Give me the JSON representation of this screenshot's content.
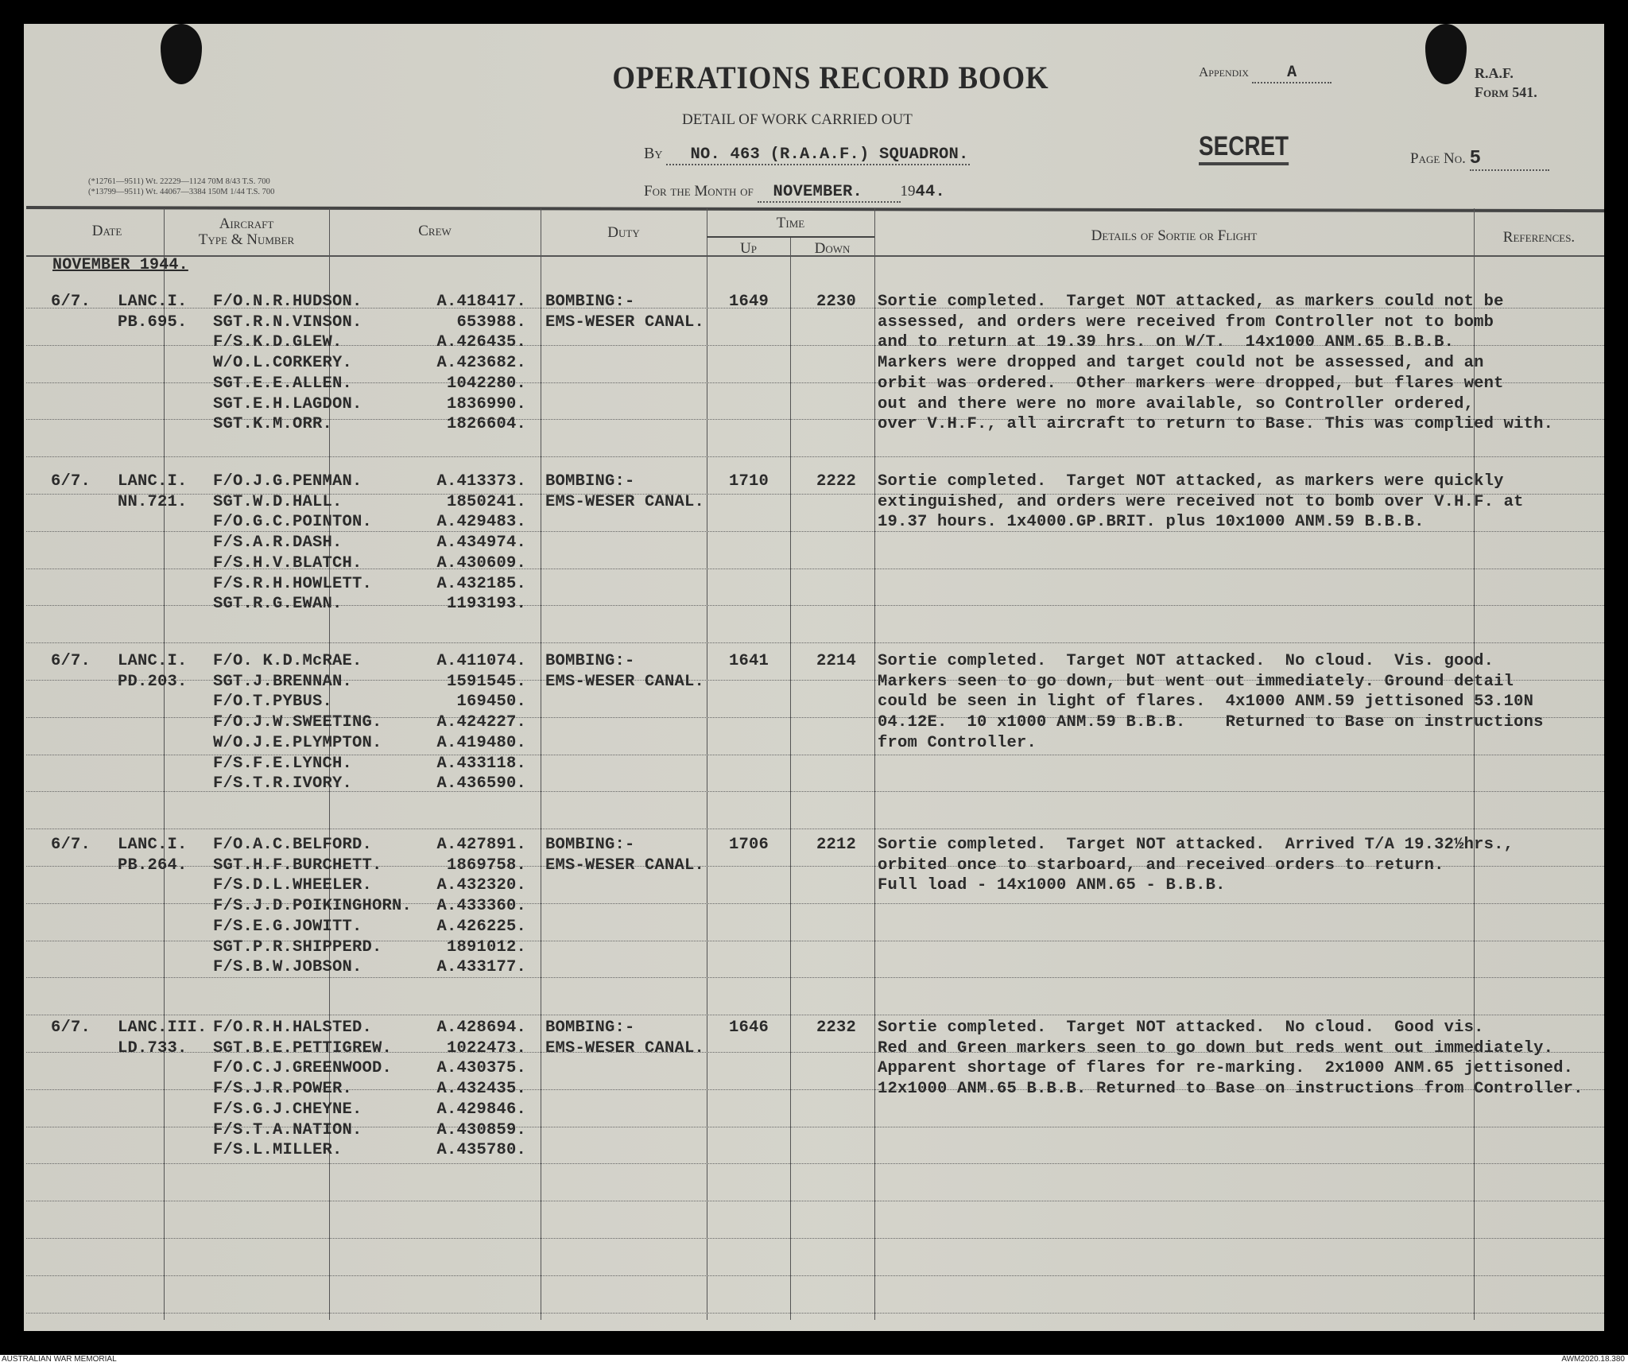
{
  "form": {
    "title": "OPERATIONS RECORD BOOK",
    "appendix_label": "Appendix",
    "appendix_value": "A",
    "raf_label": "R.A.F.",
    "form_number": "Form 541.",
    "subtitle": "DETAIL OF WORK CARRIED OUT",
    "by_label": "By",
    "squadron": "NO. 463 (R.A.A.F.) SQUADRON.",
    "classification": "SECRET",
    "page_label": "Page No.",
    "page_number": "5",
    "month_label": "For the Month of",
    "month_value": "NOVEMBER.",
    "year_prefix": "19",
    "year_suffix": "44.",
    "print_ref_1": "(*12761—9511)  Wt. 22229—1124  70M  8/43  T.S.  700",
    "print_ref_2": "(*13799—9511)  Wt. 44067—3384  150M  1/44  T.S.  700"
  },
  "columns": {
    "date": "Date",
    "aircraft_1": "Aircraft",
    "aircraft_2": "Type & Number",
    "crew": "Crew",
    "duty": "Duty",
    "time": "Time",
    "up": "Up",
    "down": "Down",
    "details": "Details of Sortie or Flight",
    "references": "References."
  },
  "section_heading": "NOVEMBER 1944.",
  "entries": [
    {
      "date": "6/7.",
      "aircraft_type": "LANC.I.",
      "aircraft_number": "PB.695.",
      "crew": [
        {
          "name": "F/O.N.R.HUDSON.",
          "number": "A.418417."
        },
        {
          "name": "SGT.R.N.VINSON.",
          "number": "653988."
        },
        {
          "name": "F/S.K.D.GLEW.",
          "number": "A.426435."
        },
        {
          "name": "W/O.L.CORKERY.",
          "number": "A.423682."
        },
        {
          "name": "SGT.E.E.ALLEN.",
          "number": "1042280."
        },
        {
          "name": "SGT.E.H.LAGDON.",
          "number": "1836990."
        },
        {
          "name": "SGT.K.M.ORR.",
          "number": "1826604."
        }
      ],
      "duty": [
        "BOMBING:-",
        "EMS-WESER CANAL."
      ],
      "up": "1649",
      "down": "2230",
      "details": [
        "Sortie completed.  Target NOT attacked, as markers could not be",
        "assessed, and orders were received from Controller not to bomb",
        "and to return at 19.39 hrs. on W/T.  14x1000 ANM.65 B.B.B.",
        "Markers were dropped and target could not be assessed, and an",
        "orbit was ordered.  Other markers were dropped, but flares went",
        "out and there were no more available, so Controller ordered,",
        "over V.H.F., all aircraft to return to Base. This was complied with."
      ]
    },
    {
      "date": "6/7.",
      "aircraft_type": "LANC.I.",
      "aircraft_number": "NN.721.",
      "crew": [
        {
          "name": "F/O.J.G.PENMAN.",
          "number": "A.413373."
        },
        {
          "name": "SGT.W.D.HALL.",
          "number": "1850241."
        },
        {
          "name": "F/O.G.C.POINTON.",
          "number": "A.429483."
        },
        {
          "name": "F/S.A.R.DASH.",
          "number": "A.434974."
        },
        {
          "name": "F/S.H.V.BLATCH.",
          "number": "A.430609."
        },
        {
          "name": "F/S.R.H.HOWLETT.",
          "number": "A.432185."
        },
        {
          "name": "SGT.R.G.EWAN.",
          "number": "1193193."
        }
      ],
      "duty": [
        "BOMBING:-",
        "EMS-WESER CANAL."
      ],
      "up": "1710",
      "down": "2222",
      "details": [
        "Sortie completed.  Target NOT attacked, as markers were quickly",
        "extinguished, and orders were received not to bomb over V.H.F. at",
        "19.37 hours. 1x4000.GP.BRIT. plus 10x1000 ANM.59 B.B.B."
      ]
    },
    {
      "date": "6/7.",
      "aircraft_type": "LANC.I.",
      "aircraft_number": "PD.203.",
      "crew": [
        {
          "name": "F/O. K.D.McRAE.",
          "number": "A.411074."
        },
        {
          "name": "SGT.J.BRENNAN.",
          "number": "1591545."
        },
        {
          "name": "F/O.T.PYBUS.",
          "number": "169450."
        },
        {
          "name": "F/O.J.W.SWEETING.",
          "number": "A.424227."
        },
        {
          "name": "W/O.J.E.PLYMPTON.",
          "number": "A.419480."
        },
        {
          "name": "F/S.F.E.LYNCH.",
          "number": "A.433118."
        },
        {
          "name": "F/S.T.R.IVORY.",
          "number": "A.436590."
        }
      ],
      "duty": [
        "BOMBING:-",
        "EMS-WESER CANAL."
      ],
      "up": "1641",
      "down": "2214",
      "details": [
        "Sortie completed.  Target NOT attacked.  No cloud.  Vis. good.",
        "Markers seen to go down, but went out immediately. Ground detail",
        "could be seen in light of flares.  4x1000 ANM.59 jettisoned 53.10N",
        "04.12E.  10 x1000 ANM.59 B.B.B.    Returned to Base on instructions",
        "from Controller."
      ]
    },
    {
      "date": "6/7.",
      "aircraft_type": "LANC.I.",
      "aircraft_number": "PB.264.",
      "crew": [
        {
          "name": "F/O.A.C.BELFORD.",
          "number": "A.427891."
        },
        {
          "name": "SGT.H.F.BURCHETT.",
          "number": "1869758."
        },
        {
          "name": "F/S.D.L.WHEELER.",
          "number": "A.432320."
        },
        {
          "name": "F/S.J.D.POIKINGHORN.",
          "number": "A.433360."
        },
        {
          "name": "F/S.E.G.JOWITT.",
          "number": "A.426225."
        },
        {
          "name": "SGT.P.R.SHIPPERD.",
          "number": "1891012."
        },
        {
          "name": "F/S.B.W.JOBSON.",
          "number": "A.433177."
        }
      ],
      "duty": [
        "BOMBING:-",
        "EMS-WESER CANAL."
      ],
      "up": "1706",
      "down": "2212",
      "details": [
        "Sortie completed.  Target NOT attacked.  Arrived T/A 19.32½hrs.,",
        "orbited once to starboard, and received orders to return.",
        "Full load - 14x1000 ANM.65 - B.B.B."
      ]
    },
    {
      "date": "6/7.",
      "aircraft_type": "LANC.III.",
      "aircraft_number": "LD.733.",
      "crew": [
        {
          "name": "F/O.R.H.HALSTED.",
          "number": "A.428694."
        },
        {
          "name": "SGT.B.E.PETTIGREW.",
          "number": "1022473."
        },
        {
          "name": "F/O.C.J.GREENWOOD.",
          "number": "A.430375."
        },
        {
          "name": "F/S.J.R.POWER.",
          "number": "A.432435."
        },
        {
          "name": "F/S.G.J.CHEYNE.",
          "number": "A.429846."
        },
        {
          "name": "F/S.T.A.NATION.",
          "number": "A.430859."
        },
        {
          "name": "F/S.L.MILLER.",
          "number": "A.435780."
        }
      ],
      "duty": [
        "BOMBING:-",
        "EMS-WESER CANAL."
      ],
      "up": "1646",
      "down": "2232",
      "details": [
        "Sortie completed.  Target NOT attacked.  No cloud.  Good vis.",
        "Red and Green markers seen to go down but reds went out immediately.",
        "Apparent shortage of flares for re-marking.  2x1000 ANM.65 jettisoned.",
        "12x1000 ANM.65 B.B.B. Returned to Base on instructions from Controller."
      ]
    }
  ],
  "footer": {
    "left": "AUSTRALIAN WAR MEMORIAL",
    "right": "AWM2020.18.380"
  }
}
